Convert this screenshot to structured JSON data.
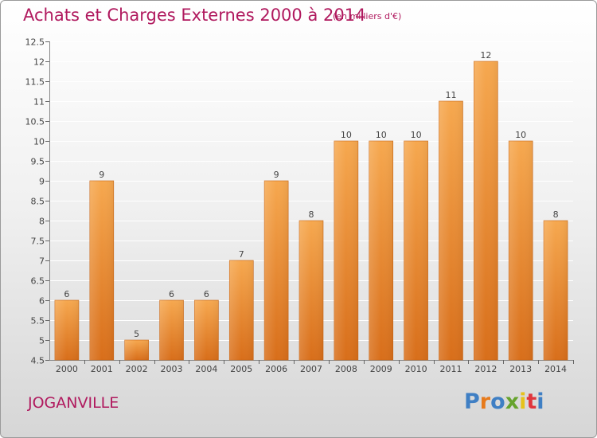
{
  "header": {
    "title": "Achats et Charges Externes 2000 à 2014",
    "subtitle": "(en milliers d'€)"
  },
  "footer": {
    "city": "JOGANVILLE",
    "logo": "Proxiti"
  },
  "colors": {
    "title": "#b0195e",
    "bar_light": "#f6a84f",
    "bar_dark": "#d86e1a",
    "logo_letters": [
      "#3f7fc4",
      "#e77a1b",
      "#3f7fc4",
      "#66a32d",
      "#e6c21a",
      "#e0363d",
      "#3f7fc4"
    ]
  },
  "chart_data": {
    "type": "bar",
    "title": "Achats et Charges Externes 2000 à 2014",
    "subtitle": "(en milliers d'€)",
    "categories": [
      "2000",
      "2001",
      "2002",
      "2003",
      "2004",
      "2005",
      "2006",
      "2007",
      "2008",
      "2009",
      "2010",
      "2011",
      "2012",
      "2013",
      "2014"
    ],
    "values": [
      6,
      9,
      5,
      6,
      6,
      7,
      9,
      8,
      10,
      10,
      10,
      11,
      12,
      10,
      8
    ],
    "value_labels": [
      "6",
      "9",
      "5",
      "6",
      "6",
      "7",
      "9",
      "8",
      "10",
      "10",
      "10",
      "11",
      "12",
      "10",
      "8"
    ],
    "ylim": [
      4.5,
      12.5
    ],
    "yticks": [
      4.5,
      5,
      5.5,
      6,
      6.5,
      7,
      7.5,
      8,
      8.5,
      9,
      9.5,
      10,
      10.5,
      11,
      11.5,
      12,
      12.5
    ],
    "ytick_labels": [
      "4.5",
      "5",
      "5.5",
      "6",
      "6.5",
      "7",
      "7.5",
      "8",
      "8.5",
      "9",
      "9.5",
      "10",
      "10.5",
      "11",
      "11.5",
      "12",
      "12.5"
    ],
    "xlabel": "",
    "ylabel": "",
    "grid": true
  }
}
